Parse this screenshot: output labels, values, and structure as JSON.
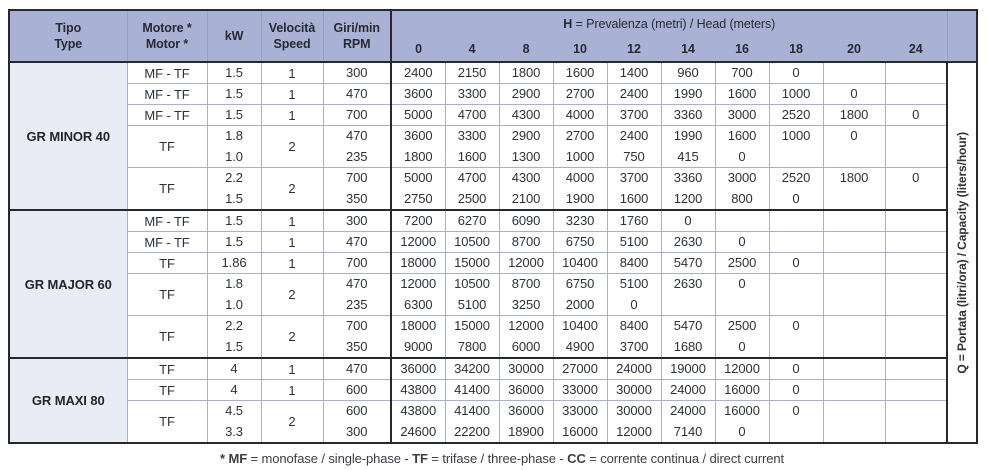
{
  "header": {
    "tipo": "Tipo\nType",
    "motore": "Motore *\nMotor *",
    "kw": "kW",
    "velocita": "Velocità\nSpeed",
    "giri": "Giri/min\nRPM",
    "h_bold": "H",
    "h_rest": " = Prevalenza (metri) / Head (meters)",
    "head_values": [
      "0",
      "4",
      "8",
      "10",
      "12",
      "14",
      "16",
      "18",
      "20",
      "24"
    ]
  },
  "q_label": "Q = Portata (litri/ora) / Capacity (liters/hour)",
  "sections": [
    {
      "name": "GR MINOR 40",
      "rows": [
        {
          "motore": "MF - TF",
          "kw": [
            "1.5"
          ],
          "speed": "1",
          "rpm": [
            "300"
          ],
          "values": [
            [
              "2400"
            ],
            [
              "2150"
            ],
            [
              "1800"
            ],
            [
              "1600"
            ],
            [
              "1400"
            ],
            [
              "960"
            ],
            [
              "700"
            ],
            [
              "0"
            ],
            [
              ""
            ],
            [
              ""
            ]
          ]
        },
        {
          "motore": "MF - TF",
          "kw": [
            "1.5"
          ],
          "speed": "1",
          "rpm": [
            "470"
          ],
          "values": [
            [
              "3600"
            ],
            [
              "3300"
            ],
            [
              "2900"
            ],
            [
              "2700"
            ],
            [
              "2400"
            ],
            [
              "1990"
            ],
            [
              "1600"
            ],
            [
              "1000"
            ],
            [
              "0"
            ],
            [
              ""
            ]
          ]
        },
        {
          "motore": "MF - TF",
          "kw": [
            "1.5"
          ],
          "speed": "1",
          "rpm": [
            "700"
          ],
          "values": [
            [
              "5000"
            ],
            [
              "4700"
            ],
            [
              "4300"
            ],
            [
              "4000"
            ],
            [
              "3700"
            ],
            [
              "3360"
            ],
            [
              "3000"
            ],
            [
              "2520"
            ],
            [
              "1800"
            ],
            [
              "0"
            ]
          ]
        },
        {
          "motore": "TF",
          "kw": [
            "1.8",
            "1.0"
          ],
          "speed": "2",
          "rpm": [
            "470",
            "235"
          ],
          "values": [
            [
              "3600",
              "1800"
            ],
            [
              "3300",
              "1600"
            ],
            [
              "2900",
              "1300"
            ],
            [
              "2700",
              "1000"
            ],
            [
              "2400",
              "750"
            ],
            [
              "1990",
              "415"
            ],
            [
              "1600",
              "0"
            ],
            [
              "1000",
              ""
            ],
            [
              "0",
              ""
            ],
            [
              "",
              ""
            ]
          ]
        },
        {
          "motore": "TF",
          "kw": [
            "2.2",
            "1.5"
          ],
          "speed": "2",
          "rpm": [
            "700",
            "350"
          ],
          "values": [
            [
              "5000",
              "2750"
            ],
            [
              "4700",
              "2500"
            ],
            [
              "4300",
              "2100"
            ],
            [
              "4000",
              "1900"
            ],
            [
              "3700",
              "1600"
            ],
            [
              "3360",
              "1200"
            ],
            [
              "3000",
              "800"
            ],
            [
              "2520",
              "0"
            ],
            [
              "1800",
              ""
            ],
            [
              "0",
              ""
            ]
          ]
        }
      ]
    },
    {
      "name": "GR MAJOR 60",
      "rows": [
        {
          "motore": "MF - TF",
          "kw": [
            "1.5"
          ],
          "speed": "1",
          "rpm": [
            "300"
          ],
          "values": [
            [
              "7200"
            ],
            [
              "6270"
            ],
            [
              "6090"
            ],
            [
              "3230"
            ],
            [
              "1760"
            ],
            [
              "0"
            ],
            [
              ""
            ],
            [
              ""
            ],
            [
              ""
            ],
            [
              ""
            ]
          ]
        },
        {
          "motore": "MF - TF",
          "kw": [
            "1.5"
          ],
          "speed": "1",
          "rpm": [
            "470"
          ],
          "values": [
            [
              "12000"
            ],
            [
              "10500"
            ],
            [
              "8700"
            ],
            [
              "6750"
            ],
            [
              "5100"
            ],
            [
              "2630"
            ],
            [
              "0"
            ],
            [
              ""
            ],
            [
              ""
            ],
            [
              ""
            ]
          ]
        },
        {
          "motore": "TF",
          "kw": [
            "1.86"
          ],
          "speed": "1",
          "rpm": [
            "700"
          ],
          "values": [
            [
              "18000"
            ],
            [
              "15000"
            ],
            [
              "12000"
            ],
            [
              "10400"
            ],
            [
              "8400"
            ],
            [
              "5470"
            ],
            [
              "2500"
            ],
            [
              "0"
            ],
            [
              ""
            ],
            [
              ""
            ]
          ]
        },
        {
          "motore": "TF",
          "kw": [
            "1.8",
            "1.0"
          ],
          "speed": "2",
          "rpm": [
            "470",
            "235"
          ],
          "values": [
            [
              "12000",
              "6300"
            ],
            [
              "10500",
              "5100"
            ],
            [
              "8700",
              "3250"
            ],
            [
              "6750",
              "2000"
            ],
            [
              "5100",
              "0"
            ],
            [
              "2630",
              ""
            ],
            [
              "0",
              ""
            ],
            [
              "",
              ""
            ],
            [
              "",
              ""
            ],
            [
              "",
              ""
            ]
          ]
        },
        {
          "motore": "TF",
          "kw": [
            "2.2",
            "1.5"
          ],
          "speed": "2",
          "rpm": [
            "700",
            "350"
          ],
          "values": [
            [
              "18000",
              "9000"
            ],
            [
              "15000",
              "7800"
            ],
            [
              "12000",
              "6000"
            ],
            [
              "10400",
              "4900"
            ],
            [
              "8400",
              "3700"
            ],
            [
              "5470",
              "1680"
            ],
            [
              "2500",
              "0"
            ],
            [
              "0",
              ""
            ],
            [
              "",
              ""
            ],
            [
              "",
              ""
            ]
          ]
        }
      ]
    },
    {
      "name": "GR MAXI 80",
      "rows": [
        {
          "motore": "TF",
          "kw": [
            "4"
          ],
          "speed": "1",
          "rpm": [
            "470"
          ],
          "values": [
            [
              "36000"
            ],
            [
              "34200"
            ],
            [
              "30000"
            ],
            [
              "27000"
            ],
            [
              "24000"
            ],
            [
              "19000"
            ],
            [
              "12000"
            ],
            [
              "0"
            ],
            [
              ""
            ],
            [
              ""
            ]
          ]
        },
        {
          "motore": "TF",
          "kw": [
            "4"
          ],
          "speed": "1",
          "rpm": [
            "600"
          ],
          "values": [
            [
              "43800"
            ],
            [
              "41400"
            ],
            [
              "36000"
            ],
            [
              "33000"
            ],
            [
              "30000"
            ],
            [
              "24000"
            ],
            [
              "16000"
            ],
            [
              "0"
            ],
            [
              ""
            ],
            [
              ""
            ]
          ]
        },
        {
          "motore": "TF",
          "kw": [
            "4.5",
            "3.3"
          ],
          "speed": "2",
          "rpm": [
            "600",
            "300"
          ],
          "values": [
            [
              "43800",
              "24600"
            ],
            [
              "41400",
              "22200"
            ],
            [
              "36000",
              "18900"
            ],
            [
              "33000",
              "16000"
            ],
            [
              "30000",
              "12000"
            ],
            [
              "24000",
              "7140"
            ],
            [
              "16000",
              "0"
            ],
            [
              "0",
              ""
            ],
            [
              "",
              ""
            ],
            [
              "",
              ""
            ]
          ]
        }
      ]
    }
  ],
  "footnote": {
    "b1": "* MF",
    "t1": " = monofase / single-phase - ",
    "b2": "TF",
    "t2": " = trifase / three-phase - ",
    "b3": "CC",
    "t3": " = corrente continua / direct current"
  }
}
